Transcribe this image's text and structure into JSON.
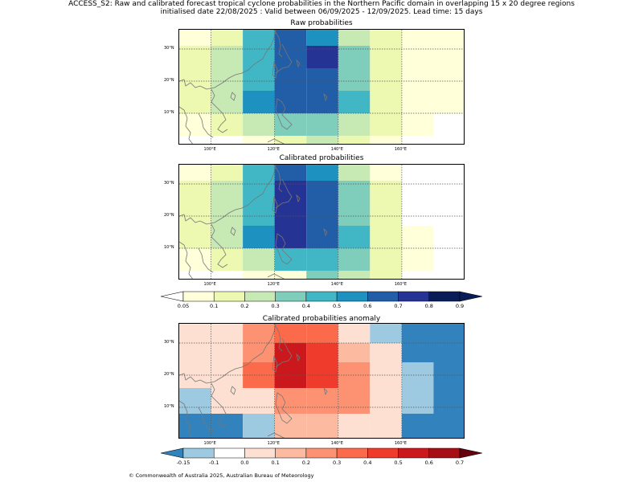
{
  "title_line1": "ACCESS_S2: Raw and calibrated forecast tropical cyclone probabilities in the Northern Pacific domain in overlapping 15 x 20 degree regions",
  "title_line2": "initialised date 22/08/2025 :  Valid between 06/09/2025 - 12/09/2025. Lead time: 15 days",
  "panels": [
    {
      "title": "Raw probabilities"
    },
    {
      "title": "Calibrated probabilities"
    },
    {
      "title": "Calibrated probabilities anomaly"
    }
  ],
  "lon_ticks": [
    "100°E",
    "120°E",
    "140°E",
    "160°E"
  ],
  "lat_ticks": [
    "30°N",
    "20°N",
    "10°N"
  ],
  "prob_colorbar": {
    "labels": [
      "0.05",
      "0.1",
      "0.2",
      "0.3",
      "0.4",
      "0.5",
      "0.6",
      "0.7",
      "0.8",
      "0.9"
    ],
    "colors": [
      "#ffffd9",
      "#edf8b1",
      "#c7e9b4",
      "#7fcdbb",
      "#41b6c4",
      "#1d91c0",
      "#225ea8",
      "#253494",
      "#081d58"
    ],
    "under_color": "#ffffff",
    "over_color": "#081d58"
  },
  "anom_colorbar": {
    "labels": [
      "-0.15",
      "-0.1",
      "0.0",
      "0.1",
      "0.2",
      "0.3",
      "0.4",
      "0.5",
      "0.6",
      "0.7"
    ],
    "colors": [
      "#9ecae1",
      "#ffffff",
      "#fee0d2",
      "#fcbba1",
      "#fc9272",
      "#fb6a4a",
      "#ef3b2c",
      "#cb181d",
      "#a50f15"
    ],
    "under_color": "#3182bd",
    "over_color": "#67000d"
  },
  "footer": "© Commonwealth of Australia 2025, Australian Bureau of Meteorology",
  "map_data": {
    "projection": "PlateCarree",
    "lon_range": [
      90,
      180
    ],
    "lat_range": [
      0,
      36
    ],
    "raw_probabilities": [
      [
        {
          "lon": [
            90,
            100
          ],
          "p": 0.07
        },
        {
          "lon": [
            100,
            110
          ],
          "p": 0.15
        },
        {
          "lon": [
            110,
            120
          ],
          "p": 0.45
        },
        {
          "lon": [
            120,
            130
          ],
          "p": 0.65
        },
        {
          "lon": [
            130,
            140
          ],
          "p": 0.55
        },
        {
          "lon": [
            140,
            150
          ],
          "p": 0.2
        },
        {
          "lon": [
            150,
            160
          ],
          "p": 0.1
        },
        {
          "lon": [
            160,
            180
          ],
          "p": 0.07
        }
      ],
      [
        {
          "lon": [
            90,
            100
          ],
          "p": 0.1
        },
        {
          "lon": [
            100,
            110
          ],
          "p": 0.2
        },
        {
          "lon": [
            110,
            120
          ],
          "p": 0.45
        },
        {
          "lon": [
            120,
            130
          ],
          "p": 0.65
        },
        {
          "lon": [
            130,
            140
          ],
          "p": 0.75
        },
        {
          "lon": [
            140,
            150
          ],
          "p": 0.35
        },
        {
          "lon": [
            150,
            160
          ],
          "p": 0.1
        },
        {
          "lon": [
            160,
            180
          ],
          "p": 0.07
        }
      ],
      [
        {
          "lon": [
            90,
            100
          ],
          "p": 0.1
        },
        {
          "lon": [
            100,
            110
          ],
          "p": 0.2
        },
        {
          "lon": [
            110,
            120
          ],
          "p": 0.45
        },
        {
          "lon": [
            120,
            130
          ],
          "p": 0.65
        },
        {
          "lon": [
            130,
            140
          ],
          "p": 0.65
        },
        {
          "lon": [
            140,
            150
          ],
          "p": 0.35
        },
        {
          "lon": [
            150,
            160
          ],
          "p": 0.1
        },
        {
          "lon": [
            160,
            180
          ],
          "p": 0.07
        }
      ],
      [
        {
          "lon": [
            90,
            100
          ],
          "p": 0.1
        },
        {
          "lon": [
            100,
            110
          ],
          "p": 0.2
        },
        {
          "lon": [
            110,
            120
          ],
          "p": 0.55
        },
        {
          "lon": [
            120,
            130
          ],
          "p": 0.65
        },
        {
          "lon": [
            130,
            140
          ],
          "p": 0.65
        },
        {
          "lon": [
            140,
            150
          ],
          "p": 0.45
        },
        {
          "lon": [
            150,
            160
          ],
          "p": 0.1
        },
        {
          "lon": [
            160,
            180
          ],
          "p": 0.07
        }
      ],
      [
        {
          "lon": [
            90,
            100
          ],
          "p": 0.07
        },
        {
          "lon": [
            100,
            110
          ],
          "p": 0.1
        },
        {
          "lon": [
            110,
            120
          ],
          "p": 0.2
        },
        {
          "lon": [
            120,
            130
          ],
          "p": 0.35
        },
        {
          "lon": [
            130,
            140
          ],
          "p": 0.35
        },
        {
          "lon": [
            140,
            150
          ],
          "p": 0.2
        },
        {
          "lon": [
            150,
            160
          ],
          "p": 0.1
        },
        {
          "lon": [
            160,
            170
          ],
          "p": 0.07
        },
        {
          "lon": [
            170,
            180
          ],
          "p": 0.0
        }
      ],
      [
        {
          "lon": [
            90,
            100
          ],
          "p": 0.0
        },
        {
          "lon": [
            100,
            110
          ],
          "p": 0.0
        },
        {
          "lon": [
            110,
            120
          ],
          "p": 0.07
        },
        {
          "lon": [
            120,
            130
          ],
          "p": 0.1
        },
        {
          "lon": [
            130,
            140
          ],
          "p": 0.2
        },
        {
          "lon": [
            140,
            150
          ],
          "p": 0.1
        },
        {
          "lon": [
            150,
            160
          ],
          "p": 0.07
        },
        {
          "lon": [
            160,
            180
          ],
          "p": 0.0
        }
      ]
    ],
    "calibrated_probabilities": [
      [
        {
          "lon": [
            90,
            100
          ],
          "p": 0.07
        },
        {
          "lon": [
            100,
            110
          ],
          "p": 0.15
        },
        {
          "lon": [
            110,
            120
          ],
          "p": 0.45
        },
        {
          "lon": [
            120,
            130
          ],
          "p": 0.65
        },
        {
          "lon": [
            130,
            140
          ],
          "p": 0.55
        },
        {
          "lon": [
            140,
            150
          ],
          "p": 0.2
        },
        {
          "lon": [
            150,
            160
          ],
          "p": 0.07
        },
        {
          "lon": [
            160,
            180
          ],
          "p": 0.0
        }
      ],
      [
        {
          "lon": [
            90,
            100
          ],
          "p": 0.1
        },
        {
          "lon": [
            100,
            110
          ],
          "p": 0.2
        },
        {
          "lon": [
            110,
            120
          ],
          "p": 0.45
        },
        {
          "lon": [
            120,
            130
          ],
          "p": 0.75
        },
        {
          "lon": [
            130,
            140
          ],
          "p": 0.65
        },
        {
          "lon": [
            140,
            150
          ],
          "p": 0.35
        },
        {
          "lon": [
            150,
            160
          ],
          "p": 0.1
        },
        {
          "lon": [
            160,
            180
          ],
          "p": 0.0
        }
      ],
      [
        {
          "lon": [
            90,
            100
          ],
          "p": 0.1
        },
        {
          "lon": [
            100,
            110
          ],
          "p": 0.2
        },
        {
          "lon": [
            110,
            120
          ],
          "p": 0.45
        },
        {
          "lon": [
            120,
            130
          ],
          "p": 0.75
        },
        {
          "lon": [
            130,
            140
          ],
          "p": 0.65
        },
        {
          "lon": [
            140,
            150
          ],
          "p": 0.35
        },
        {
          "lon": [
            150,
            160
          ],
          "p": 0.1
        },
        {
          "lon": [
            160,
            180
          ],
          "p": 0.0
        }
      ],
      [
        {
          "lon": [
            90,
            100
          ],
          "p": 0.1
        },
        {
          "lon": [
            100,
            110
          ],
          "p": 0.2
        },
        {
          "lon": [
            110,
            120
          ],
          "p": 0.55
        },
        {
          "lon": [
            120,
            130
          ],
          "p": 0.75
        },
        {
          "lon": [
            130,
            140
          ],
          "p": 0.65
        },
        {
          "lon": [
            140,
            150
          ],
          "p": 0.45
        },
        {
          "lon": [
            150,
            160
          ],
          "p": 0.1
        },
        {
          "lon": [
            160,
            170
          ],
          "p": 0.07
        },
        {
          "lon": [
            170,
            180
          ],
          "p": 0.0
        }
      ],
      [
        {
          "lon": [
            90,
            100
          ],
          "p": 0.07
        },
        {
          "lon": [
            100,
            110
          ],
          "p": 0.1
        },
        {
          "lon": [
            110,
            120
          ],
          "p": 0.2
        },
        {
          "lon": [
            120,
            130
          ],
          "p": 0.45
        },
        {
          "lon": [
            130,
            140
          ],
          "p": 0.45
        },
        {
          "lon": [
            140,
            150
          ],
          "p": 0.35
        },
        {
          "lon": [
            150,
            160
          ],
          "p": 0.1
        },
        {
          "lon": [
            160,
            170
          ],
          "p": 0.07
        },
        {
          "lon": [
            170,
            180
          ],
          "p": 0.0
        }
      ],
      [
        {
          "lon": [
            90,
            100
          ],
          "p": 0.0
        },
        {
          "lon": [
            100,
            110
          ],
          "p": 0.0
        },
        {
          "lon": [
            110,
            120
          ],
          "p": 0.07
        },
        {
          "lon": [
            120,
            130
          ],
          "p": 0.07
        },
        {
          "lon": [
            130,
            140
          ],
          "p": 0.35
        },
        {
          "lon": [
            140,
            150
          ],
          "p": 0.2
        },
        {
          "lon": [
            150,
            160
          ],
          "p": 0.1
        },
        {
          "lon": [
            160,
            180
          ],
          "p": 0.0
        }
      ]
    ],
    "calibrated_anomaly": [
      [
        {
          "lon": [
            90,
            100
          ],
          "p": 0.0
        },
        {
          "lon": [
            100,
            110
          ],
          "p": 0.0
        },
        {
          "lon": [
            110,
            120
          ],
          "p": 0.25
        },
        {
          "lon": [
            120,
            130
          ],
          "p": 0.35
        },
        {
          "lon": [
            130,
            140
          ],
          "p": 0.35
        },
        {
          "lon": [
            140,
            150
          ],
          "p": 0.0
        },
        {
          "lon": [
            150,
            160
          ],
          "p": -0.12
        },
        {
          "lon": [
            160,
            180
          ],
          "p": -0.2
        }
      ],
      [
        {
          "lon": [
            90,
            100
          ],
          "p": 0.0
        },
        {
          "lon": [
            100,
            110
          ],
          "p": 0.05
        },
        {
          "lon": [
            110,
            120
          ],
          "p": 0.25
        },
        {
          "lon": [
            120,
            130
          ],
          "p": 0.55
        },
        {
          "lon": [
            130,
            140
          ],
          "p": 0.45
        },
        {
          "lon": [
            140,
            150
          ],
          "p": 0.15
        },
        {
          "lon": [
            150,
            160
          ],
          "p": 0.0
        },
        {
          "lon": [
            160,
            180
          ],
          "p": -0.2
        }
      ],
      [
        {
          "lon": [
            90,
            100
          ],
          "p": 0.0
        },
        {
          "lon": [
            100,
            110
          ],
          "p": 0.05
        },
        {
          "lon": [
            110,
            120
          ],
          "p": 0.35
        },
        {
          "lon": [
            120,
            130
          ],
          "p": 0.55
        },
        {
          "lon": [
            130,
            140
          ],
          "p": 0.45
        },
        {
          "lon": [
            140,
            150
          ],
          "p": 0.25
        },
        {
          "lon": [
            150,
            160
          ],
          "p": 0.0
        },
        {
          "lon": [
            160,
            170
          ],
          "p": -0.12
        },
        {
          "lon": [
            170,
            180
          ],
          "p": -0.2
        }
      ],
      [
        {
          "lon": [
            90,
            100
          ],
          "p": -0.12
        },
        {
          "lon": [
            100,
            110
          ],
          "p": 0.0
        },
        {
          "lon": [
            110,
            120
          ],
          "p": 0.05
        },
        {
          "lon": [
            120,
            130
          ],
          "p": 0.25
        },
        {
          "lon": [
            130,
            140
          ],
          "p": 0.25
        },
        {
          "lon": [
            140,
            150
          ],
          "p": 0.25
        },
        {
          "lon": [
            150,
            160
          ],
          "p": 0.0
        },
        {
          "lon": [
            160,
            170
          ],
          "p": -0.12
        },
        {
          "lon": [
            170,
            180
          ],
          "p": -0.2
        }
      ],
      [
        {
          "lon": [
            90,
            100
          ],
          "p": -0.2
        },
        {
          "lon": [
            100,
            110
          ],
          "p": -0.2
        },
        {
          "lon": [
            110,
            120
          ],
          "p": -0.12
        },
        {
          "lon": [
            120,
            130
          ],
          "p": 0.15
        },
        {
          "lon": [
            130,
            140
          ],
          "p": 0.15
        },
        {
          "lon": [
            140,
            150
          ],
          "p": 0.05
        },
        {
          "lon": [
            150,
            160
          ],
          "p": 0.0
        },
        {
          "lon": [
            160,
            180
          ],
          "p": -0.2
        }
      ]
    ],
    "anomaly_row_heights_deg": [
      6,
      6,
      8,
      8,
      8
    ]
  }
}
